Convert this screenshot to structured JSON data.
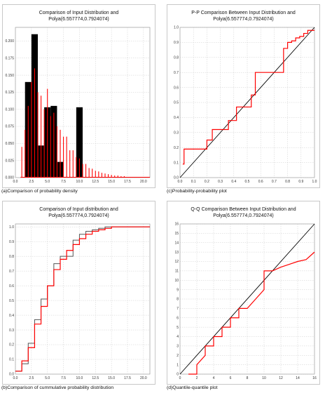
{
  "panels": [
    {
      "id": "a",
      "title": "Comparison of Input Distribution and\nPolya(6.557774,0.7924074)",
      "caption": "(a)Comparison of probability density"
    },
    {
      "id": "c",
      "title": "P-P Comparison Between Input Distribution and\nPolya(6.557774,0.7924074)",
      "caption": "(c)Probability-probability plot"
    },
    {
      "id": "b",
      "title": "Comparison of Input distribution and\nPolya(6.557774,0.7924074)",
      "caption": "(b)Comparison of cummulative probability distribution"
    },
    {
      "id": "d",
      "title": "Q-Q Comparison Between Input Distribution and\nPolya(6.557774,0.7924074)",
      "caption": "(d)Quantile-quantile plot"
    }
  ],
  "colors": {
    "empirical": "#000000",
    "fitted": "#ff0000",
    "grid": "#c0c0c0"
  },
  "chart_data": [
    {
      "id": "a",
      "type": "bar",
      "xlim": [
        0,
        21
      ],
      "ylim": [
        0,
        0.22
      ],
      "xticks": [
        "0.0",
        "2.5",
        "5.0",
        "7.5",
        "10.0",
        "12.5",
        "15.0",
        "17.5",
        "20.0"
      ],
      "xtick_values": [
        0,
        2.5,
        5,
        7.5,
        10,
        12.5,
        15,
        17.5,
        20
      ],
      "yticks": [
        "0.000",
        "0.025",
        "0.050",
        "0.075",
        "0.100",
        "0.125",
        "0.150",
        "0.175",
        "0.200"
      ],
      "ytick_values": [
        0,
        0.025,
        0.05,
        0.075,
        0.1,
        0.125,
        0.15,
        0.175,
        0.2
      ],
      "bars": {
        "x": [
          2,
          3,
          4,
          5,
          6,
          7,
          8,
          9,
          10
        ],
        "values": [
          0.14,
          0.21,
          0.047,
          0.103,
          0.105,
          0.023,
          0.0,
          0.0,
          0.103
        ]
      },
      "fitted": {
        "x": [
          1,
          1.5,
          2,
          2.5,
          3,
          3.5,
          4,
          4.5,
          5,
          5.5,
          6,
          6.5,
          7,
          7.5,
          8,
          8.5,
          9,
          9.5,
          10,
          10.5,
          11,
          11.5,
          12,
          12.5,
          13,
          13.5,
          14,
          14.5,
          15,
          15.5,
          16,
          16.5,
          17
        ],
        "values": [
          0.045,
          0.07,
          0.105,
          0.14,
          0.16,
          0.125,
          0.12,
          0.1,
          0.13,
          0.09,
          0.095,
          0.075,
          0.07,
          0.06,
          0.06,
          0.04,
          0.04,
          0.03,
          0.028,
          0.02,
          0.02,
          0.014,
          0.013,
          0.01,
          0.009,
          0.007,
          0.006,
          0.005,
          0.004,
          0.003,
          0.003,
          0.002,
          0.002
        ]
      }
    },
    {
      "id": "c",
      "type": "line",
      "xlim": [
        0,
        1
      ],
      "ylim": [
        0,
        1
      ],
      "xticks": [
        "0.0",
        "0.1",
        "0.2",
        "0.3",
        "0.4",
        "0.5",
        "0.6",
        "0.7",
        "0.8",
        "0.9",
        "1.0"
      ],
      "xtick_values": [
        0,
        0.1,
        0.2,
        0.3,
        0.4,
        0.5,
        0.6,
        0.7,
        0.8,
        0.9,
        1.0
      ],
      "yticks": [
        "0.0",
        "0.1",
        "0.2",
        "0.3",
        "0.4",
        "0.5",
        "0.6",
        "0.7",
        "0.8",
        "0.9",
        "1.0"
      ],
      "ytick_values": [
        0,
        0.1,
        0.2,
        0.3,
        0.4,
        0.5,
        0.6,
        0.7,
        0.8,
        0.9,
        1.0
      ],
      "diagonal": {
        "x": [
          0,
          1
        ],
        "y": [
          0,
          1
        ]
      },
      "series": {
        "x": [
          0.02,
          0.03,
          0.03,
          0.2,
          0.2,
          0.24,
          0.24,
          0.36,
          0.36,
          0.42,
          0.42,
          0.53,
          0.53,
          0.56,
          0.56,
          0.7,
          0.7,
          0.77,
          0.77,
          0.8,
          0.8,
          0.83,
          0.83,
          0.86,
          0.86,
          0.89,
          0.89,
          0.92,
          0.92,
          0.95,
          0.95,
          1.0
        ],
        "y": [
          0.09,
          0.09,
          0.19,
          0.19,
          0.25,
          0.25,
          0.32,
          0.32,
          0.38,
          0.38,
          0.47,
          0.47,
          0.55,
          0.55,
          0.7,
          0.7,
          0.7,
          0.7,
          0.86,
          0.86,
          0.9,
          0.9,
          0.91,
          0.91,
          0.93,
          0.93,
          0.94,
          0.94,
          0.96,
          0.96,
          0.98,
          0.98
        ]
      }
    },
    {
      "id": "b",
      "type": "line",
      "xlim": [
        0,
        21
      ],
      "ylim": [
        0,
        1.02
      ],
      "xticks": [
        "0.0",
        "2.5",
        "5.0",
        "7.5",
        "10.0",
        "12.5",
        "15.0",
        "17.5",
        "20.0"
      ],
      "xtick_values": [
        0,
        2.5,
        5,
        7.5,
        10,
        12.5,
        15,
        17.5,
        20
      ],
      "yticks": [
        "0.0",
        "0.1",
        "0.2",
        "0.3",
        "0.4",
        "0.5",
        "0.6",
        "0.7",
        "0.8",
        "0.9",
        "1.0"
      ],
      "ytick_values": [
        0,
        0.1,
        0.2,
        0.3,
        0.4,
        0.5,
        0.6,
        0.7,
        0.8,
        0.9,
        1.0
      ],
      "series": [
        {
          "x": [
            0,
            1,
            1,
            2,
            2,
            3,
            3,
            4,
            4,
            5,
            5,
            6,
            6,
            7,
            7,
            8,
            8,
            9,
            9,
            10,
            10,
            11,
            11,
            12,
            12,
            13,
            13,
            14,
            14,
            21
          ],
          "y": [
            0.02,
            0.02,
            0.07,
            0.07,
            0.21,
            0.21,
            0.37,
            0.37,
            0.51,
            0.51,
            0.6,
            0.6,
            0.75,
            0.75,
            0.8,
            0.8,
            0.8,
            0.8,
            0.91,
            0.91,
            0.95,
            0.95,
            0.97,
            0.97,
            0.98,
            0.98,
            0.99,
            0.99,
            1.0,
            1.0
          ]
        },
        {
          "x": [
            0,
            1,
            1,
            2,
            2,
            3,
            3,
            4,
            4,
            5,
            5,
            6,
            6,
            7,
            7,
            8,
            8,
            9,
            9,
            10,
            10,
            11,
            11,
            12,
            12,
            13,
            13,
            14,
            14,
            15,
            15,
            21
          ],
          "y": [
            0.02,
            0.02,
            0.09,
            0.09,
            0.18,
            0.18,
            0.34,
            0.34,
            0.46,
            0.46,
            0.6,
            0.6,
            0.71,
            0.71,
            0.78,
            0.78,
            0.84,
            0.84,
            0.88,
            0.88,
            0.92,
            0.92,
            0.95,
            0.95,
            0.97,
            0.97,
            0.98,
            0.98,
            0.99,
            0.99,
            1.0,
            1.0
          ]
        }
      ]
    },
    {
      "id": "d",
      "type": "line",
      "xlim": [
        0,
        16
      ],
      "ylim": [
        0,
        16
      ],
      "xticks": [
        "0",
        "2",
        "4",
        "6",
        "8",
        "10",
        "12",
        "14",
        "16"
      ],
      "xtick_values": [
        0,
        2,
        4,
        6,
        8,
        10,
        12,
        14,
        16
      ],
      "yticks": [
        "0",
        "1",
        "2",
        "3",
        "4",
        "5",
        "6",
        "7",
        "8",
        "9",
        "10",
        "11",
        "12",
        "13",
        "14",
        "15",
        "16"
      ],
      "ytick_values": [
        0,
        1,
        2,
        3,
        4,
        5,
        6,
        7,
        8,
        9,
        10,
        11,
        12,
        13,
        14,
        15,
        16
      ],
      "diagonal": {
        "x": [
          0,
          16
        ],
        "y": [
          0,
          16
        ]
      },
      "series": {
        "x": [
          1,
          2,
          2,
          3,
          3,
          4,
          4,
          5,
          5,
          6,
          6,
          7,
          7,
          8,
          8,
          9,
          10,
          10,
          11,
          11,
          12,
          13,
          14,
          15,
          16
        ],
        "y": [
          0,
          0,
          1,
          2,
          3,
          3,
          4,
          4,
          5,
          5,
          6,
          6,
          7,
          7,
          7,
          8,
          9,
          11,
          11,
          11,
          11.4,
          11.7,
          12,
          12.2,
          13
        ]
      }
    }
  ]
}
